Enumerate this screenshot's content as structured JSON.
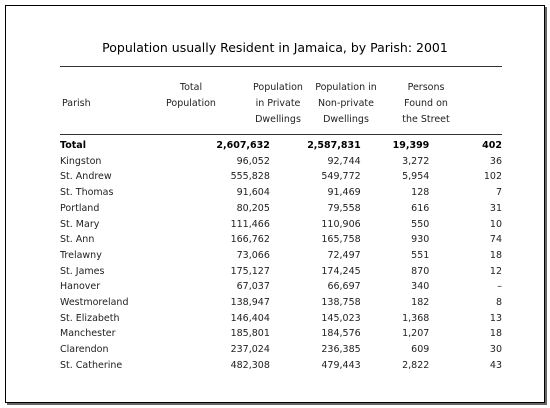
{
  "title": "Population usually Resident in Jamaica, by Parish: 2001",
  "headers": {
    "parish": "Parish",
    "total": "Total\nPopulation",
    "private": "Population\nin Private\nDwellings",
    "nonprivate": "Population in\nNon-private\nDwellings",
    "street": "Persons\nFound on\nthe Street"
  },
  "rows": [
    {
      "parish": "Total",
      "total": "2,607,632",
      "private": "2,587,831",
      "nonprivate": "19,399",
      "street": "402"
    },
    {
      "parish": "Kingston",
      "total": "96,052",
      "private": "92,744",
      "nonprivate": "3,272",
      "street": "36"
    },
    {
      "parish": "St. Andrew",
      "total": "555,828",
      "private": "549,772",
      "nonprivate": "5,954",
      "street": "102"
    },
    {
      "parish": "St. Thomas",
      "total": "91,604",
      "private": "91,469",
      "nonprivate": "128",
      "street": "7"
    },
    {
      "parish": "Portland",
      "total": "80,205",
      "private": "79,558",
      "nonprivate": "616",
      "street": "31"
    },
    {
      "parish": "St. Mary",
      "total": "111,466",
      "private": "110,906",
      "nonprivate": "550",
      "street": "10"
    },
    {
      "parish": "St. Ann",
      "total": "166,762",
      "private": "165,758",
      "nonprivate": "930",
      "street": "74"
    },
    {
      "parish": "Trelawny",
      "total": "73,066",
      "private": "72,497",
      "nonprivate": "551",
      "street": "18"
    },
    {
      "parish": "St. James",
      "total": "175,127",
      "private": "174,245",
      "nonprivate": "870",
      "street": "12"
    },
    {
      "parish": "Hanover",
      "total": "67,037",
      "private": "66,697",
      "nonprivate": "340",
      "street": "–"
    },
    {
      "parish": "Westmoreland",
      "total": "138,947",
      "private": "138,758",
      "nonprivate": "182",
      "street": "8"
    },
    {
      "parish": "St. Elizabeth",
      "total": "146,404",
      "private": "145,023",
      "nonprivate": "1,368",
      "street": "13"
    },
    {
      "parish": "Manchester",
      "total": "185,801",
      "private": "184,576",
      "nonprivate": "1,207",
      "street": "18"
    },
    {
      "parish": "Clarendon",
      "total": "237,024",
      "private": "236,385",
      "nonprivate": "609",
      "street": "30"
    },
    {
      "parish": "St. Catherine",
      "total": "482,308",
      "private": "479,443",
      "nonprivate": "2,822",
      "street": "43"
    }
  ]
}
